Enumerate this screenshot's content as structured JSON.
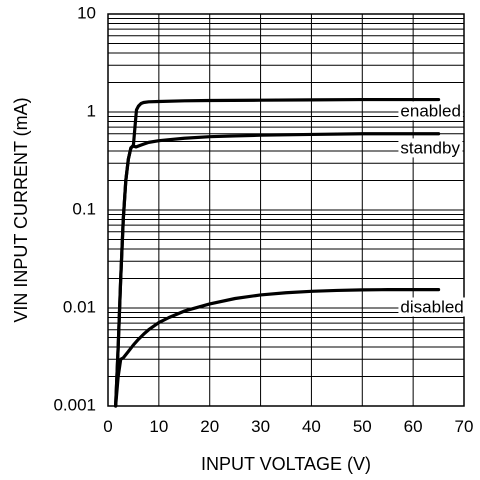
{
  "chart_data": {
    "type": "line",
    "xlabel": "INPUT VOLTAGE (V)",
    "ylabel": "VIN INPUT CURRENT (mA)",
    "x_scale": "linear",
    "y_scale": "log",
    "xlim": [
      0,
      70
    ],
    "ylim": [
      0.001,
      10
    ],
    "x_ticks": [
      0,
      10,
      20,
      30,
      40,
      50,
      60,
      70
    ],
    "x_tick_labels": [
      "0",
      "10",
      "20",
      "30",
      "40",
      "50",
      "60",
      "70"
    ],
    "y_ticks": [
      0.001,
      0.01,
      0.1,
      1,
      10
    ],
    "y_tick_labels": [
      "0.001",
      "0.01",
      "0.1",
      "1",
      "10"
    ],
    "grid": true,
    "series": [
      {
        "name": "enabled",
        "x": [
          1.5,
          2.0,
          2.5,
          3.0,
          3.5,
          4.0,
          4.5,
          5.0,
          5.3,
          5.6,
          6.0,
          6.5,
          7.0,
          8.0,
          10,
          15,
          20,
          30,
          40,
          50,
          60,
          65
        ],
        "y": [
          0.001,
          0.004,
          0.02,
          0.08,
          0.2,
          0.33,
          0.43,
          0.46,
          0.7,
          1.05,
          1.15,
          1.22,
          1.25,
          1.27,
          1.28,
          1.3,
          1.31,
          1.32,
          1.33,
          1.34,
          1.34,
          1.34
        ]
      },
      {
        "name": "standby",
        "x": [
          1.5,
          2.0,
          2.5,
          3.0,
          3.5,
          4.0,
          4.5,
          5.0,
          5.5,
          6.0,
          7.0,
          8.0,
          10,
          15,
          20,
          25,
          30,
          40,
          50,
          60,
          65
        ],
        "y": [
          0.001,
          0.004,
          0.02,
          0.08,
          0.2,
          0.33,
          0.43,
          0.45,
          0.44,
          0.45,
          0.47,
          0.49,
          0.51,
          0.54,
          0.56,
          0.57,
          0.58,
          0.59,
          0.6,
          0.6,
          0.6
        ]
      },
      {
        "name": "disabled",
        "x": [
          1.5,
          2.0,
          2.5,
          3.0,
          4.0,
          5.0,
          6.0,
          7.0,
          8.0,
          10,
          12,
          15,
          20,
          25,
          30,
          35,
          40,
          45,
          50,
          55,
          60,
          65
        ],
        "y": [
          0.001,
          0.002,
          0.003,
          0.0031,
          0.0036,
          0.0042,
          0.0048,
          0.0054,
          0.006,
          0.0071,
          0.008,
          0.0093,
          0.011,
          0.0125,
          0.0136,
          0.0143,
          0.0148,
          0.0151,
          0.0153,
          0.0154,
          0.0154,
          0.0154
        ]
      }
    ],
    "annotations": [
      {
        "text": "enabled",
        "x": 57.5,
        "y": 1.0
      },
      {
        "text": "standby",
        "x": 57.5,
        "y": 0.42
      },
      {
        "text": "disabled",
        "x": 57.5,
        "y": 0.01
      }
    ]
  }
}
